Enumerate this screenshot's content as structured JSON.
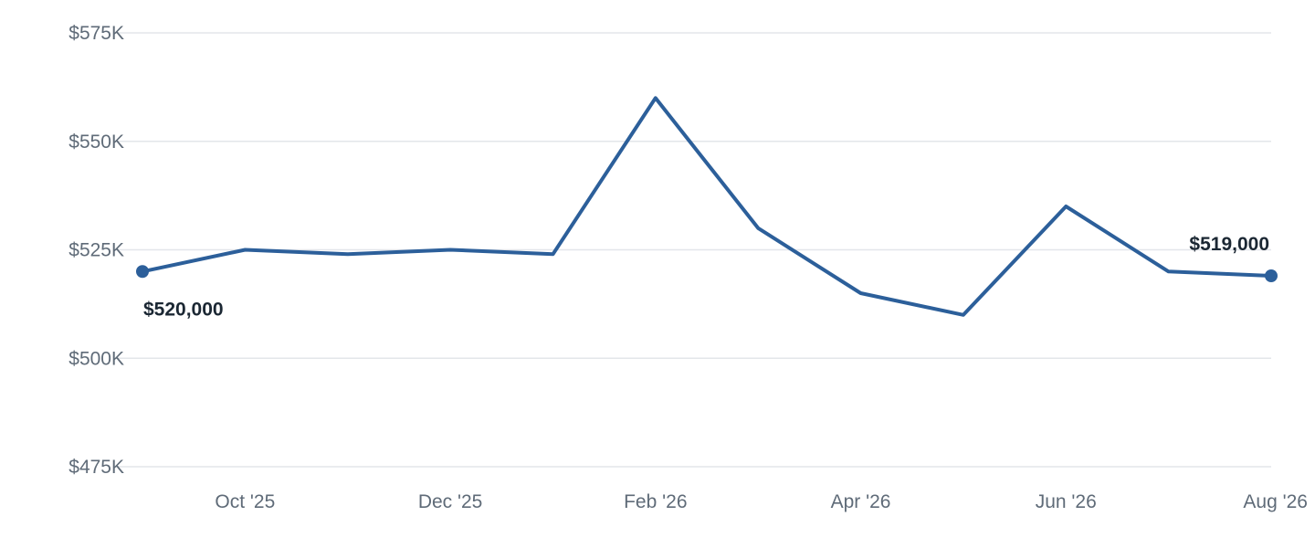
{
  "chart_data": {
    "type": "line",
    "title": "",
    "xlabel": "",
    "ylabel": "",
    "x": [
      "2025-09",
      "2025-10",
      "2025-11",
      "2025-12",
      "2026-01",
      "2026-02",
      "2026-03",
      "2026-04",
      "2026-05",
      "2026-06",
      "2026-07",
      "2026-08"
    ],
    "series": [
      {
        "values": [
          520000,
          525000,
          524000,
          525000,
          524000,
          560000,
          530000,
          515000,
          510000,
          535000,
          520000,
          519000
        ],
        "color": "#2c5f9a"
      }
    ],
    "ylim": [
      475000,
      575000
    ],
    "y_ticks": [
      {
        "value": 475000,
        "label": "$475K"
      },
      {
        "value": 500000,
        "label": "$500K"
      },
      {
        "value": 525000,
        "label": "$525K"
      },
      {
        "value": 550000,
        "label": "$550K"
      },
      {
        "value": 575000,
        "label": "$575K"
      }
    ],
    "x_ticks": [
      {
        "index": 1,
        "label": "Oct '25"
      },
      {
        "index": 3,
        "label": "Dec '25"
      },
      {
        "index": 5,
        "label": "Feb '26"
      },
      {
        "index": 7,
        "label": "Apr '26"
      },
      {
        "index": 9,
        "label": "Jun '26"
      },
      {
        "index": 11,
        "label": "Aug '26"
      }
    ],
    "data_labels": [
      {
        "index": 0,
        "text": "$520,000"
      },
      {
        "index": 11,
        "text": "$519,000"
      }
    ],
    "grid": true,
    "legend": "none"
  }
}
